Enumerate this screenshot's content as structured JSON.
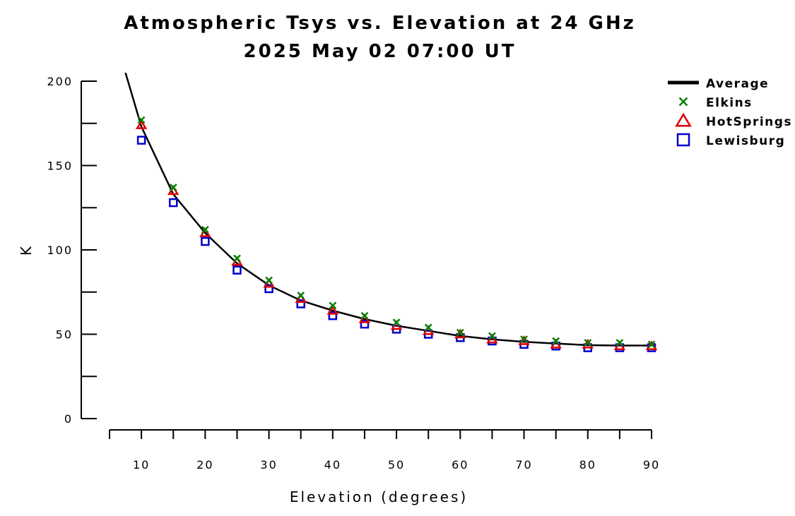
{
  "chart_data": {
    "type": "scatter",
    "title": "Atmospheric Tsys vs. Elevation at 24 GHz",
    "subtitle": "2025 May 02 07:00 UT",
    "xlabel": "Elevation (degrees)",
    "ylabel": "K",
    "xlim": [
      5,
      90
    ],
    "ylim": [
      0,
      200
    ],
    "xticks": [
      10,
      20,
      30,
      40,
      50,
      60,
      70,
      80,
      90
    ],
    "yticks": [
      0,
      50,
      100,
      150,
      200
    ],
    "legend_position": "top-right",
    "grid": false,
    "x": [
      10,
      15,
      20,
      25,
      30,
      35,
      40,
      45,
      50,
      55,
      60,
      65,
      70,
      75,
      80,
      85,
      90
    ],
    "average_curve": {
      "name": "Average",
      "color": "#000000",
      "x": [
        7.5,
        10,
        15,
        20,
        25,
        30,
        35,
        40,
        45,
        50,
        55,
        60,
        65,
        70,
        75,
        80,
        85,
        90
      ],
      "y": [
        205,
        173,
        133,
        110,
        92,
        79,
        70,
        64,
        59,
        55,
        52,
        49,
        47,
        45.5,
        44.5,
        43.5,
        43.3,
        43.3
      ]
    },
    "series": [
      {
        "name": "Elkins",
        "marker": "x",
        "color": "#008000",
        "y": [
          177,
          137,
          112,
          95,
          82,
          73,
          67,
          61,
          57,
          54,
          51,
          49,
          47,
          46,
          45,
          45,
          44
        ]
      },
      {
        "name": "HotSprings",
        "marker": "triangle",
        "color": "#e00000",
        "y": [
          174,
          135,
          110,
          93,
          80,
          71,
          64,
          59,
          55,
          52,
          50,
          47,
          46,
          44,
          44,
          43,
          43
        ]
      },
      {
        "name": "Lewisburg",
        "marker": "square",
        "color": "#0000cc",
        "y": [
          165,
          128,
          105,
          88,
          77,
          68,
          61,
          56,
          53,
          50,
          48,
          46,
          44,
          43,
          42,
          42,
          42
        ]
      }
    ]
  }
}
